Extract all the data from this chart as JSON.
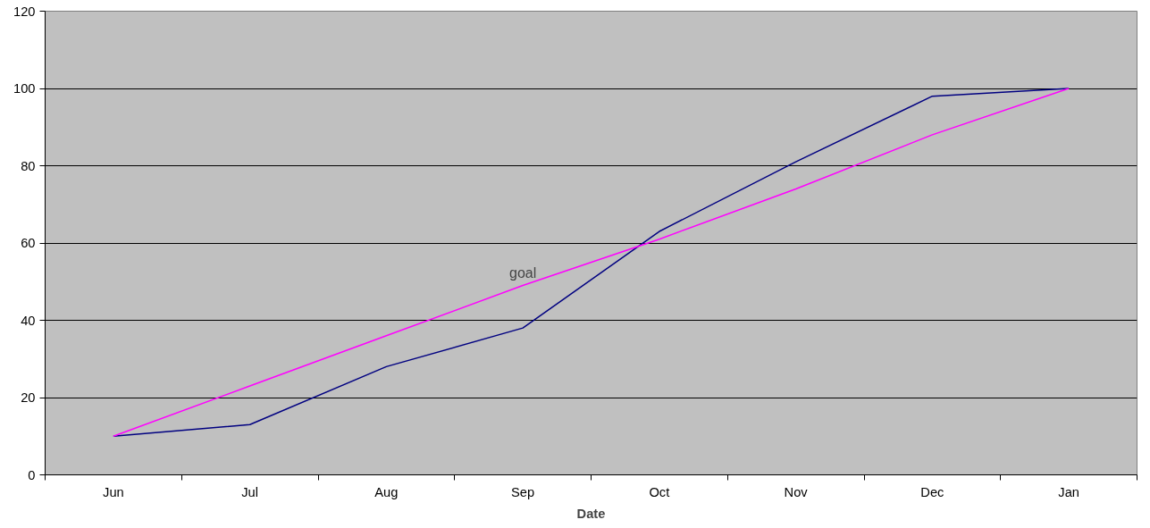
{
  "chart_data": {
    "type": "line",
    "xlabel": "Date",
    "categories": [
      "Jun",
      "Jul",
      "Aug",
      "Sep",
      "Oct",
      "Nov",
      "Dec",
      "Jan"
    ],
    "series": [
      {
        "color": "#000080",
        "values": [
          10,
          13,
          28,
          38,
          63,
          81,
          98,
          100
        ]
      },
      {
        "color": "#ff00ff",
        "values": [
          10,
          23,
          36,
          49,
          61,
          74,
          88,
          100
        ]
      }
    ],
    "annotations": [
      "goal"
    ],
    "ylim": [
      0,
      120
    ],
    "yticks": [
      0,
      20,
      40,
      60,
      80,
      100,
      120
    ],
    "grid": "y",
    "marker": "none",
    "line_style": "solid"
  }
}
